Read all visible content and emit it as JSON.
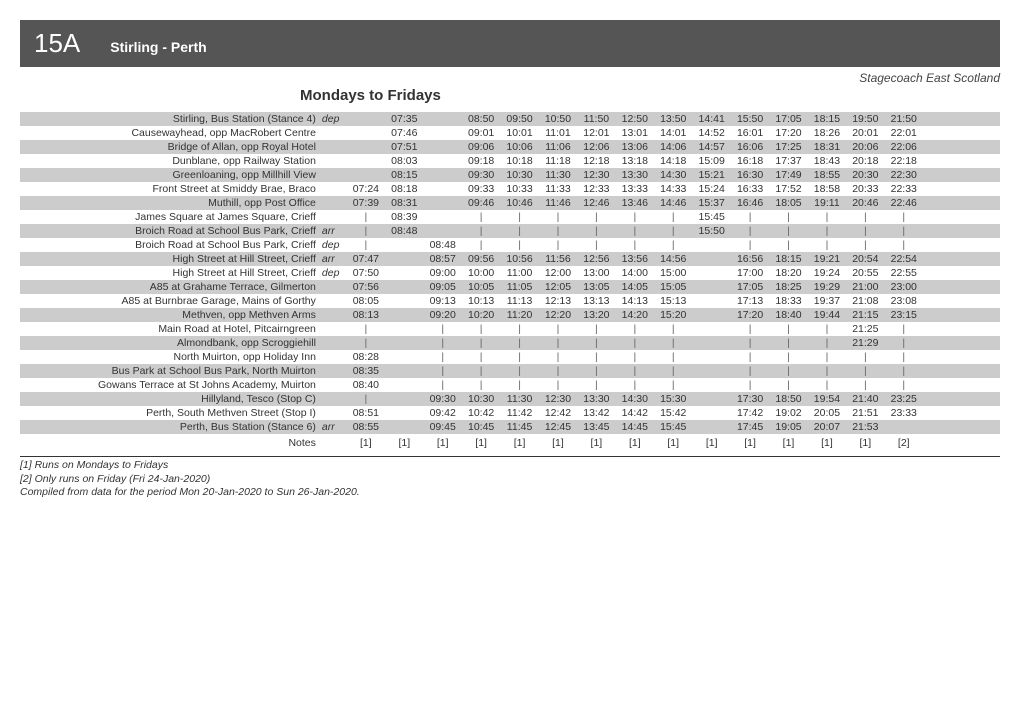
{
  "header": {
    "route_number": "15A",
    "route_name": "Stirling - Perth",
    "operator": "Stagecoach East Scotland",
    "days": "Mondays to Fridays"
  },
  "columns": 17,
  "pipe_glyph": "|",
  "rows": [
    {
      "shade": true,
      "stop": "Stirling, Bus Station (Stance 4)",
      "da": "dep",
      "times": [
        "",
        "07:35",
        "",
        "08:50",
        "09:50",
        "10:50",
        "11:50",
        "12:50",
        "13:50",
        "14:41",
        "15:50",
        "17:05",
        "18:15",
        "19:50",
        "21:50",
        "",
        ""
      ]
    },
    {
      "shade": false,
      "stop": "Causewayhead, opp MacRobert Centre",
      "da": "",
      "times": [
        "",
        "07:46",
        "",
        "09:01",
        "10:01",
        "11:01",
        "12:01",
        "13:01",
        "14:01",
        "14:52",
        "16:01",
        "17:20",
        "18:26",
        "20:01",
        "22:01",
        "",
        ""
      ]
    },
    {
      "shade": true,
      "stop": "Bridge of Allan, opp Royal Hotel",
      "da": "",
      "times": [
        "",
        "07:51",
        "",
        "09:06",
        "10:06",
        "11:06",
        "12:06",
        "13:06",
        "14:06",
        "14:57",
        "16:06",
        "17:25",
        "18:31",
        "20:06",
        "22:06",
        "",
        ""
      ]
    },
    {
      "shade": false,
      "stop": "Dunblane, opp Railway Station",
      "da": "",
      "times": [
        "",
        "08:03",
        "",
        "09:18",
        "10:18",
        "11:18",
        "12:18",
        "13:18",
        "14:18",
        "15:09",
        "16:18",
        "17:37",
        "18:43",
        "20:18",
        "22:18",
        "",
        ""
      ]
    },
    {
      "shade": true,
      "stop": "Greenloaning, opp Millhill View",
      "da": "",
      "times": [
        "",
        "08:15",
        "",
        "09:30",
        "10:30",
        "11:30",
        "12:30",
        "13:30",
        "14:30",
        "15:21",
        "16:30",
        "17:49",
        "18:55",
        "20:30",
        "22:30",
        "",
        ""
      ]
    },
    {
      "shade": false,
      "stop": "Front Street at Smiddy Brae, Braco",
      "da": "",
      "times": [
        "07:24",
        "08:18",
        "",
        "09:33",
        "10:33",
        "11:33",
        "12:33",
        "13:33",
        "14:33",
        "15:24",
        "16:33",
        "17:52",
        "18:58",
        "20:33",
        "22:33",
        "",
        ""
      ]
    },
    {
      "shade": true,
      "stop": "Muthill, opp Post Office",
      "da": "",
      "times": [
        "07:39",
        "08:31",
        "",
        "09:46",
        "10:46",
        "11:46",
        "12:46",
        "13:46",
        "14:46",
        "15:37",
        "16:46",
        "18:05",
        "19:11",
        "20:46",
        "22:46",
        "",
        ""
      ]
    },
    {
      "shade": false,
      "stop": "James Square at James Square, Crieff",
      "da": "",
      "times": [
        "|",
        "08:39",
        "",
        "|",
        "|",
        "|",
        "|",
        "|",
        "|",
        "15:45",
        "|",
        "|",
        "|",
        "|",
        "|",
        "",
        ""
      ]
    },
    {
      "shade": true,
      "stop": "Broich Road at School Bus Park, Crieff",
      "da": "arr",
      "times": [
        "|",
        "08:48",
        "",
        "|",
        "|",
        "|",
        "|",
        "|",
        "|",
        "15:50",
        "|",
        "|",
        "|",
        "|",
        "|",
        "",
        ""
      ]
    },
    {
      "shade": false,
      "stop": "Broich Road at School Bus Park, Crieff",
      "da": "dep",
      "times": [
        "|",
        "",
        "08:48",
        "|",
        "|",
        "|",
        "|",
        "|",
        "|",
        "",
        "|",
        "|",
        "|",
        "|",
        "|",
        "",
        ""
      ]
    },
    {
      "shade": true,
      "stop": "High Street at Hill Street, Crieff",
      "da": "arr",
      "times": [
        "07:47",
        "",
        "08:57",
        "09:56",
        "10:56",
        "11:56",
        "12:56",
        "13:56",
        "14:56",
        "",
        "16:56",
        "18:15",
        "19:21",
        "20:54",
        "22:54",
        "",
        ""
      ]
    },
    {
      "shade": false,
      "stop": "High Street at Hill Street, Crieff",
      "da": "dep",
      "times": [
        "07:50",
        "",
        "09:00",
        "10:00",
        "11:00",
        "12:00",
        "13:00",
        "14:00",
        "15:00",
        "",
        "17:00",
        "18:20",
        "19:24",
        "20:55",
        "22:55",
        "",
        ""
      ]
    },
    {
      "shade": true,
      "stop": "A85 at Grahame Terrace, Gilmerton",
      "da": "",
      "times": [
        "07:56",
        "",
        "09:05",
        "10:05",
        "11:05",
        "12:05",
        "13:05",
        "14:05",
        "15:05",
        "",
        "17:05",
        "18:25",
        "19:29",
        "21:00",
        "23:00",
        "",
        ""
      ]
    },
    {
      "shade": false,
      "stop": "A85 at Burnbrae Garage, Mains of Gorthy",
      "da": "",
      "times": [
        "08:05",
        "",
        "09:13",
        "10:13",
        "11:13",
        "12:13",
        "13:13",
        "14:13",
        "15:13",
        "",
        "17:13",
        "18:33",
        "19:37",
        "21:08",
        "23:08",
        "",
        ""
      ]
    },
    {
      "shade": true,
      "stop": "Methven, opp Methven Arms",
      "da": "",
      "times": [
        "08:13",
        "",
        "09:20",
        "10:20",
        "11:20",
        "12:20",
        "13:20",
        "14:20",
        "15:20",
        "",
        "17:20",
        "18:40",
        "19:44",
        "21:15",
        "23:15",
        "",
        ""
      ]
    },
    {
      "shade": false,
      "stop": "Main Road at Hotel, Pitcairngreen",
      "da": "",
      "times": [
        "|",
        "",
        "|",
        "|",
        "|",
        "|",
        "|",
        "|",
        "|",
        "",
        "|",
        "|",
        "|",
        "21:25",
        "|",
        "",
        ""
      ]
    },
    {
      "shade": true,
      "stop": "Almondbank, opp Scroggiehill",
      "da": "",
      "times": [
        "|",
        "",
        "|",
        "|",
        "|",
        "|",
        "|",
        "|",
        "|",
        "",
        "|",
        "|",
        "|",
        "21:29",
        "|",
        "",
        ""
      ]
    },
    {
      "shade": false,
      "stop": "North Muirton, opp Holiday Inn",
      "da": "",
      "times": [
        "08:28",
        "",
        "|",
        "|",
        "|",
        "|",
        "|",
        "|",
        "|",
        "",
        "|",
        "|",
        "|",
        "|",
        "|",
        "",
        ""
      ]
    },
    {
      "shade": true,
      "stop": "Bus Park at School Bus Park, North Muirton",
      "da": "",
      "times": [
        "08:35",
        "",
        "|",
        "|",
        "|",
        "|",
        "|",
        "|",
        "|",
        "",
        "|",
        "|",
        "|",
        "|",
        "|",
        "",
        ""
      ]
    },
    {
      "shade": false,
      "stop": "Gowans Terrace at St Johns Academy, Muirton",
      "da": "",
      "times": [
        "08:40",
        "",
        "|",
        "|",
        "|",
        "|",
        "|",
        "|",
        "|",
        "",
        "|",
        "|",
        "|",
        "|",
        "|",
        "",
        ""
      ]
    },
    {
      "shade": true,
      "stop": "Hillyland, Tesco (Stop C)",
      "da": "",
      "times": [
        "|",
        "",
        "09:30",
        "10:30",
        "11:30",
        "12:30",
        "13:30",
        "14:30",
        "15:30",
        "",
        "17:30",
        "18:50",
        "19:54",
        "21:40",
        "23:25",
        "",
        ""
      ]
    },
    {
      "shade": false,
      "stop": "Perth, South Methven Street (Stop I)",
      "da": "",
      "times": [
        "08:51",
        "",
        "09:42",
        "10:42",
        "11:42",
        "12:42",
        "13:42",
        "14:42",
        "15:42",
        "",
        "17:42",
        "19:02",
        "20:05",
        "21:51",
        "23:33",
        "",
        ""
      ]
    },
    {
      "shade": true,
      "stop": "Perth, Bus Station (Stance 6)",
      "da": "arr",
      "times": [
        "08:55",
        "",
        "09:45",
        "10:45",
        "11:45",
        "12:45",
        "13:45",
        "14:45",
        "15:45",
        "",
        "17:45",
        "19:05",
        "20:07",
        "21:53",
        "",
        "",
        ""
      ]
    }
  ],
  "notes_row": {
    "label": "Notes",
    "values": [
      "[1]",
      "[1]",
      "[1]",
      "[1]",
      "[1]",
      "[1]",
      "[1]",
      "[1]",
      "[1]",
      "[1]",
      "[1]",
      "[1]",
      "[1]",
      "[1]",
      "[2]",
      "",
      ""
    ]
  },
  "footnotes": [
    "[1] Runs on Mondays to Fridays",
    "[2] Only runs on Friday (Fri 24-Jan-2020)",
    "Compiled from data for the period Mon 20-Jan-2020 to Sun 26-Jan-2020."
  ]
}
